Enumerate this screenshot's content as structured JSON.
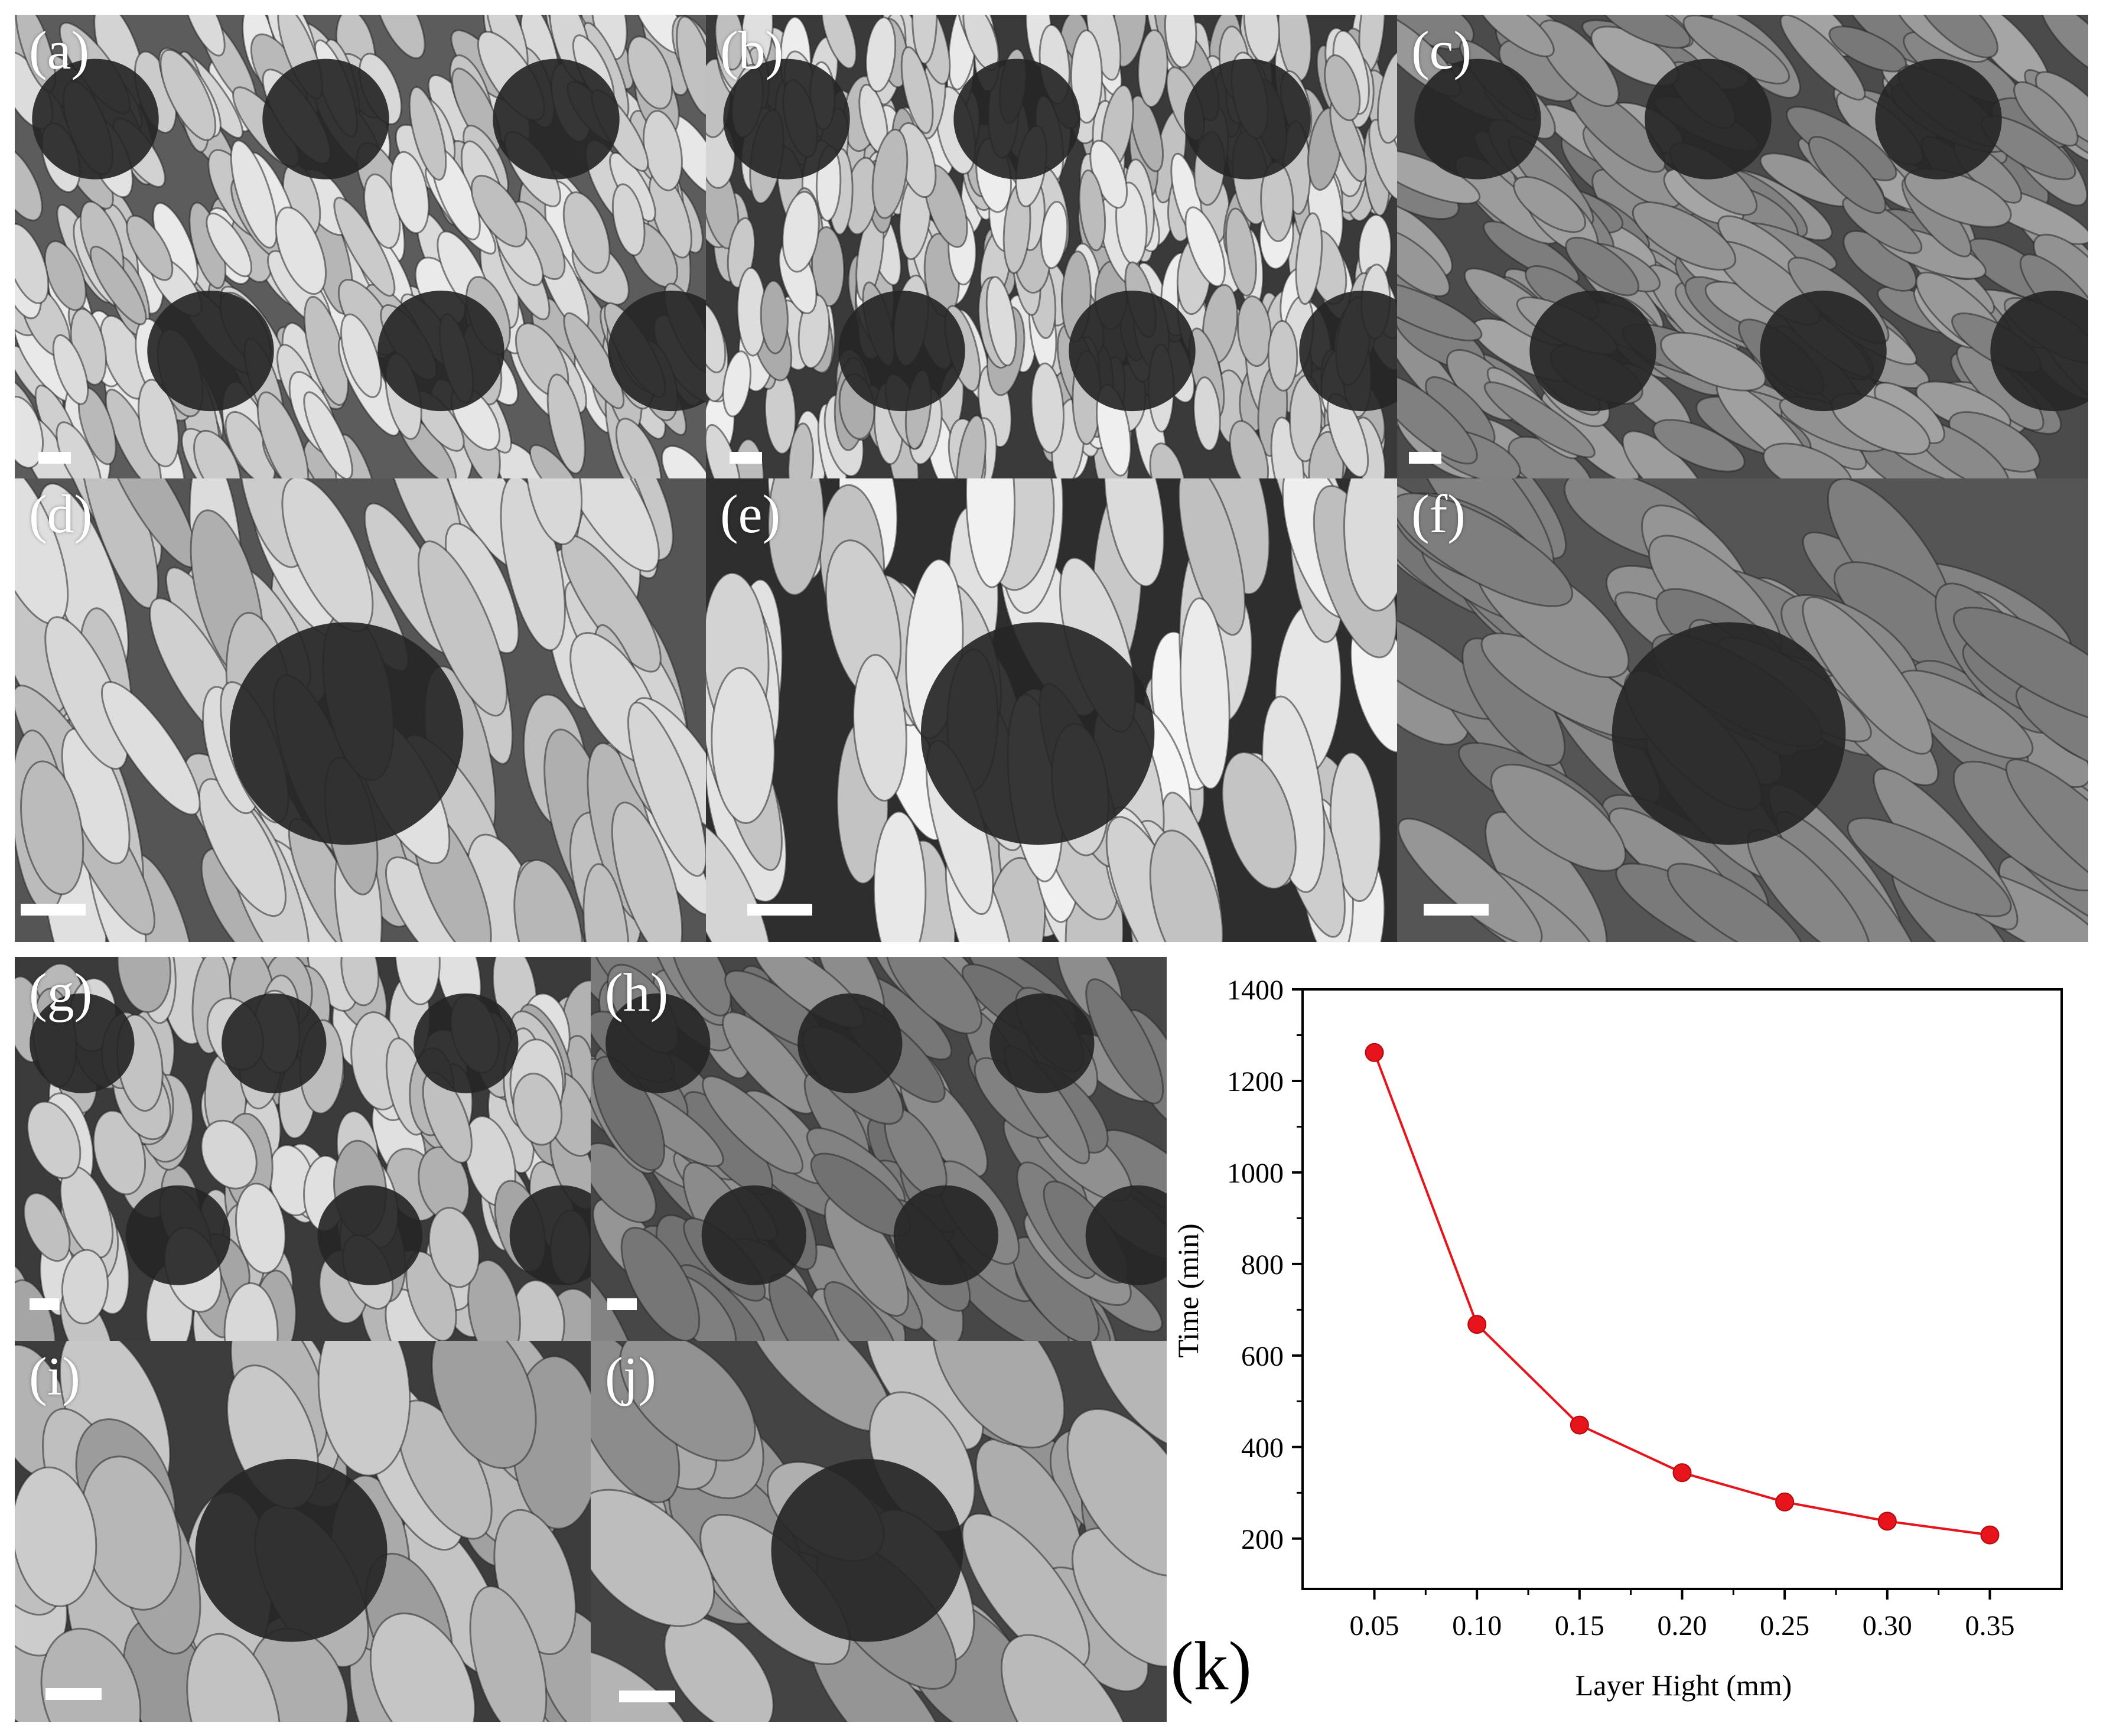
{
  "panels": [
    {
      "id": "a",
      "label": "(a)"
    },
    {
      "id": "b",
      "label": "(b)"
    },
    {
      "id": "c",
      "label": "(c)"
    },
    {
      "id": "d",
      "label": "(d)"
    },
    {
      "id": "e",
      "label": "(e)"
    },
    {
      "id": "f",
      "label": "(f)"
    },
    {
      "id": "g",
      "label": "(g)"
    },
    {
      "id": "h",
      "label": "(h)"
    },
    {
      "id": "i",
      "label": "(i)"
    },
    {
      "id": "j",
      "label": "(j)"
    }
  ],
  "colors": {
    "series": "#e8141b",
    "marker": "#e8141b",
    "axis": "#000000"
  },
  "chart_data": {
    "type": "line",
    "panel_label": "(k)",
    "title": "",
    "xlabel": "Layer Hight (mm)",
    "ylabel": "Time (min)",
    "x": [
      0.05,
      0.1,
      0.15,
      0.2,
      0.25,
      0.3,
      0.35
    ],
    "x_tick_labels": [
      "0.05",
      "0.10",
      "0.15",
      "0.20",
      "0.25",
      "0.30",
      "0.35"
    ],
    "y_ticks": [
      200,
      400,
      600,
      800,
      1000,
      1200,
      1400
    ],
    "xlim": [
      0.015,
      0.385
    ],
    "ylim": [
      90,
      1400
    ],
    "series": [
      {
        "values": [
          1262,
          668,
          448,
          344,
          280,
          238,
          208
        ]
      }
    ],
    "grid": false,
    "legend": "none"
  }
}
